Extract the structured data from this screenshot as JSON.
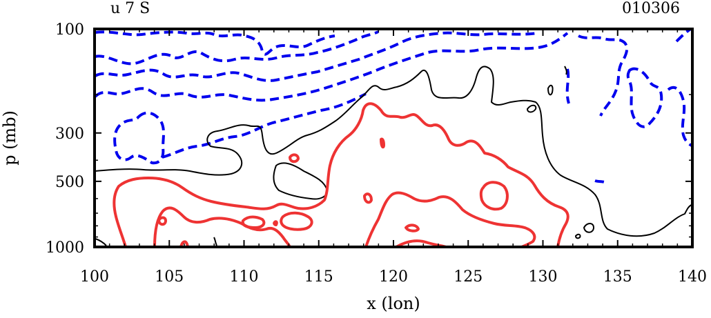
{
  "chart_data": {
    "type": "contour",
    "title_left": "u 7 S",
    "title_right": "010306",
    "xlabel": "x (lon)",
    "ylabel": "p (mb)",
    "xlim": [
      100,
      140
    ],
    "ylim": [
      100,
      1000
    ],
    "y_scale": "log",
    "x_ticks": [
      "100",
      "105",
      "110",
      "115",
      "120",
      "125",
      "130",
      "135",
      "140"
    ],
    "y_ticks": [
      "100",
      "300",
      "500",
      "1000"
    ],
    "x_tick_values": [
      100,
      105,
      110,
      115,
      120,
      125,
      130,
      135,
      140
    ],
    "y_tick_values": [
      100,
      300,
      500,
      1000
    ],
    "grid": false,
    "series": [
      {
        "style": "dashed",
        "color": "#0000ee",
        "sign": "negative"
      },
      {
        "style": "solid",
        "color": "#000000",
        "sign": "zero"
      },
      {
        "style": "solid",
        "color": "#ee3333",
        "sign": "positive"
      }
    ]
  }
}
